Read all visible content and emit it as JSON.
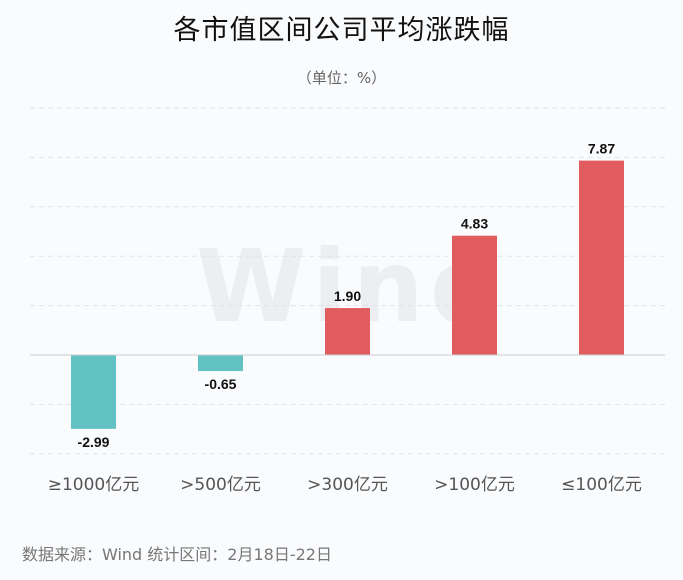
{
  "chart_data": {
    "type": "bar",
    "title": "各市值区间公司平均涨跌幅",
    "subtitle": "（单位：%）",
    "categories": [
      "≥1000亿元",
      ">500亿元",
      ">300亿元",
      ">100亿元",
      "≤100亿元"
    ],
    "values": [
      -2.99,
      -0.65,
      1.9,
      4.83,
      7.87
    ],
    "value_labels": [
      "-2.99",
      "-0.65",
      "1.90",
      "4.83",
      "7.87"
    ],
    "ylim": [
      -4,
      10
    ],
    "grid": true,
    "colors": {
      "positive": "#e05c5e",
      "negative": "#62c1c2"
    }
  },
  "watermark": "Wind",
  "source": "数据来源：Wind    统计区间：2月18日-22日"
}
